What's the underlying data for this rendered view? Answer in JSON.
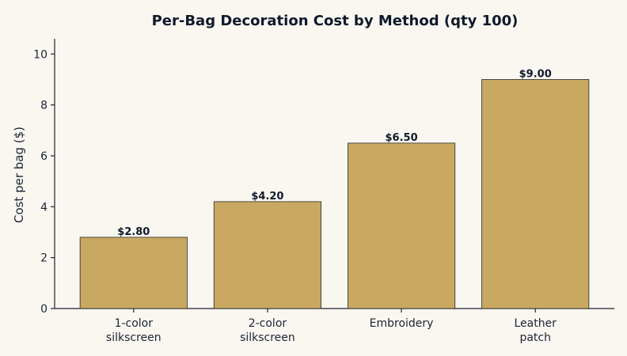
{
  "chart_data": {
    "type": "bar",
    "title": "Per-Bag Decoration Cost by Method (qty 100)",
    "xlabel": "",
    "ylabel": "Cost per bag ($)",
    "categories": [
      [
        "1-color",
        "silkscreen"
      ],
      [
        "2-color",
        "silkscreen"
      ],
      [
        "Embroidery"
      ],
      [
        "Leather",
        "patch"
      ]
    ],
    "values": [
      2.8,
      4.2,
      6.5,
      9.0
    ],
    "data_labels": [
      "$2.80",
      "$4.20",
      "$6.50",
      "$9.00"
    ],
    "ylim": [
      0,
      10.6
    ],
    "yticks": [
      0,
      2,
      4,
      6,
      8,
      10
    ],
    "grid": false,
    "colors": {
      "bar_fill": "#c9a862",
      "bar_edge": "#2a2a2a",
      "background": "#faf7f1"
    }
  }
}
